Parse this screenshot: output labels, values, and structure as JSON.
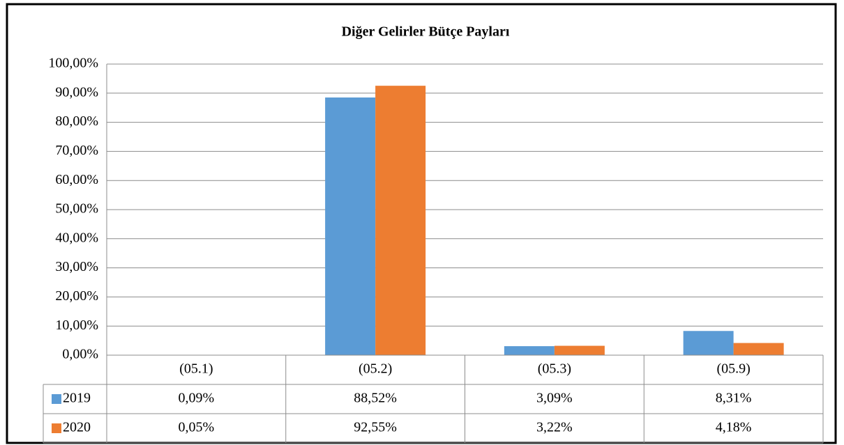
{
  "chart_data": {
    "type": "bar",
    "title": "Diğer Gelirler Bütçe Payları",
    "categories": [
      "(05.1)",
      "(05.2)",
      "(05.3)",
      "(05.9)"
    ],
    "series": [
      {
        "name": "2019",
        "color": "#5b9bd5",
        "values": [
          0.09,
          88.52,
          3.09,
          8.31
        ],
        "value_labels": [
          "0,09%",
          "88,52%",
          "3,09%",
          "8,31%"
        ]
      },
      {
        "name": "2020",
        "color": "#ed7d31",
        "values": [
          0.05,
          92.55,
          3.22,
          4.18
        ],
        "value_labels": [
          "0,05%",
          "92,55%",
          "3,22%",
          "4,18%"
        ]
      }
    ],
    "ylim": [
      0,
      100
    ],
    "yticks": [
      {
        "value": 0,
        "label": "0,00%"
      },
      {
        "value": 10,
        "label": "10,00%"
      },
      {
        "value": 20,
        "label": "20,00%"
      },
      {
        "value": 30,
        "label": "30,00%"
      },
      {
        "value": 40,
        "label": "40,00%"
      },
      {
        "value": 50,
        "label": "50,00%"
      },
      {
        "value": 60,
        "label": "60,00%"
      },
      {
        "value": 70,
        "label": "70,00%"
      },
      {
        "value": 80,
        "label": "80,00%"
      },
      {
        "value": 90,
        "label": "90,00%"
      },
      {
        "value": 100,
        "label": "100,00%"
      }
    ],
    "grid": true,
    "data_table": true
  }
}
